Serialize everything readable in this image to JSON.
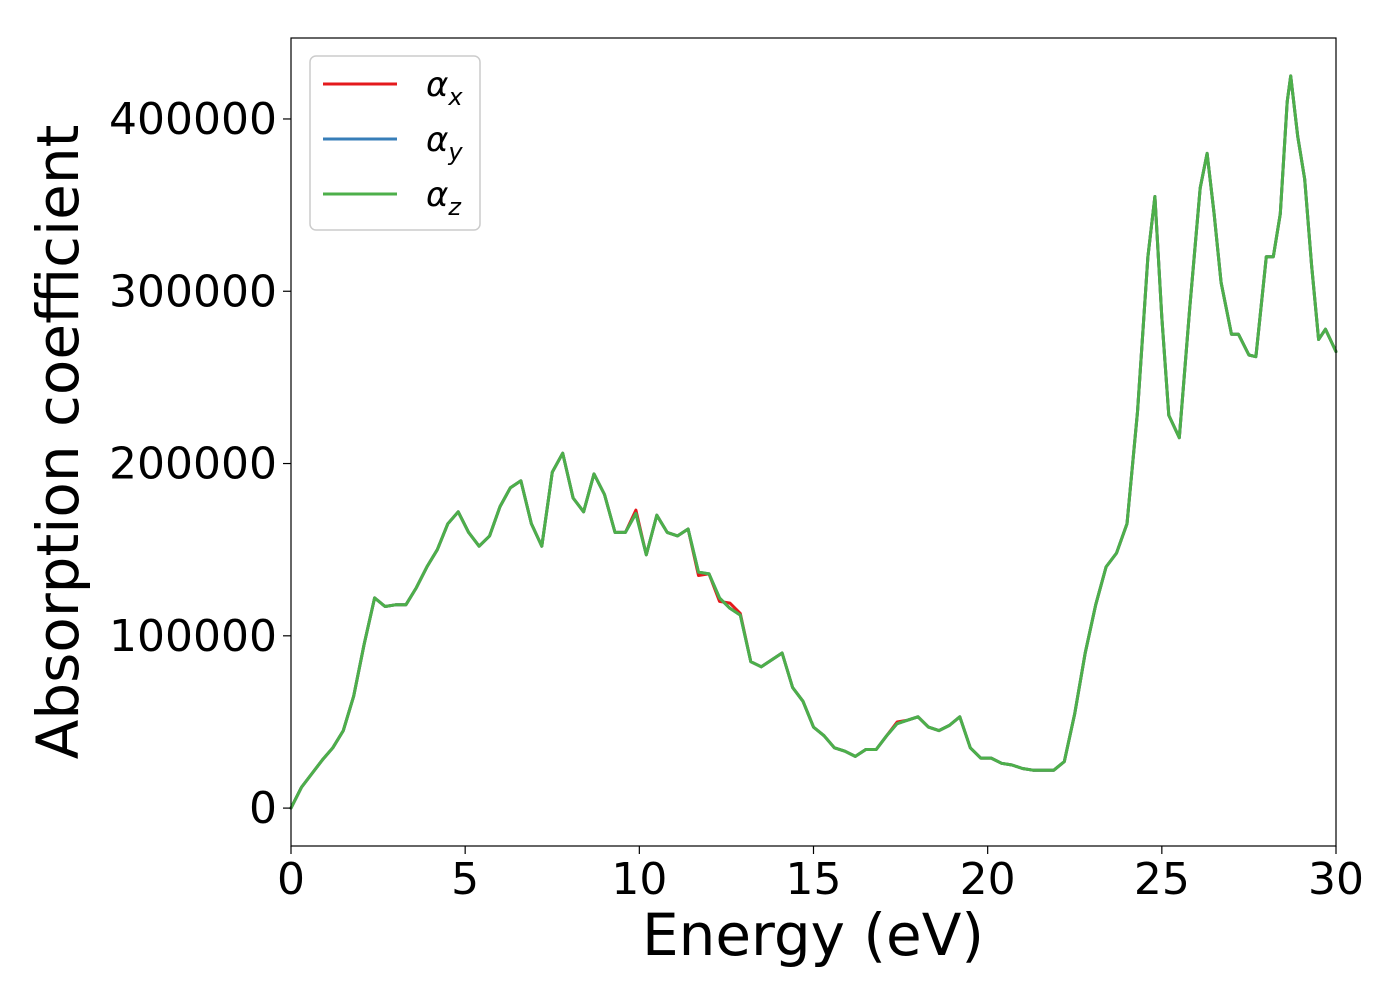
{
  "chart_data": {
    "type": "line",
    "title": "",
    "xlabel": "Energy (eV)",
    "ylabel": "Absorption coefficient",
    "xlim": [
      0,
      30
    ],
    "ylim": [
      -22000,
      447000
    ],
    "xticks": [
      0,
      5,
      10,
      15,
      20,
      25,
      30
    ],
    "xtick_labels": [
      "0",
      "5",
      "10",
      "15",
      "20",
      "25",
      "30"
    ],
    "yticks": [
      0,
      100000,
      200000,
      300000,
      400000
    ],
    "ytick_labels": [
      "0",
      "100000",
      "200000",
      "300000",
      "400000"
    ],
    "grid": false,
    "legend_position": "top-left",
    "x": [
      0,
      0.3,
      0.6,
      0.9,
      1.2,
      1.5,
      1.8,
      2.1,
      2.4,
      2.7,
      3.0,
      3.3,
      3.6,
      3.9,
      4.2,
      4.5,
      4.8,
      5.1,
      5.4,
      5.7,
      6.0,
      6.3,
      6.6,
      6.9,
      7.2,
      7.5,
      7.8,
      8.1,
      8.4,
      8.7,
      9.0,
      9.3,
      9.6,
      9.9,
      10.2,
      10.5,
      10.8,
      11.1,
      11.4,
      11.7,
      12.0,
      12.3,
      12.6,
      12.9,
      13.2,
      13.5,
      13.8,
      14.1,
      14.4,
      14.7,
      15.0,
      15.3,
      15.6,
      15.9,
      16.2,
      16.5,
      16.8,
      17.1,
      17.4,
      17.7,
      18.0,
      18.3,
      18.6,
      18.9,
      19.2,
      19.5,
      19.8,
      20.1,
      20.4,
      20.7,
      21.0,
      21.3,
      21.6,
      21.9,
      22.2,
      22.5,
      22.8,
      23.1,
      23.4,
      23.7,
      24.0,
      24.3,
      24.6,
      24.8,
      25.0,
      25.2,
      25.5,
      25.8,
      26.1,
      26.3,
      26.5,
      26.7,
      27.0,
      27.2,
      27.5,
      27.7,
      28.0,
      28.2,
      28.4,
      28.6,
      28.7,
      28.9,
      29.1,
      29.3,
      29.5,
      29.7,
      30.0
    ],
    "series": [
      {
        "name": "αx",
        "color": "#e41a1c",
        "values": [
          0,
          12000,
          20000,
          28000,
          35000,
          45000,
          65000,
          95000,
          122000,
          117000,
          118000,
          118000,
          128000,
          140000,
          150000,
          165000,
          172000,
          160000,
          152000,
          158000,
          175000,
          186000,
          190000,
          165000,
          152000,
          195000,
          206000,
          180000,
          172000,
          194000,
          182000,
          160000,
          160000,
          173000,
          147000,
          170000,
          160000,
          158000,
          162000,
          135000,
          136000,
          120000,
          119000,
          113000,
          85000,
          82000,
          86000,
          90000,
          70000,
          62000,
          47000,
          42000,
          35000,
          33000,
          30000,
          34000,
          34000,
          42000,
          50000,
          51000,
          53000,
          47000,
          45000,
          48000,
          53000,
          35000,
          29000,
          29000,
          26000,
          25000,
          23000,
          22000,
          22000,
          22000,
          27000,
          55000,
          90000,
          118000,
          140000,
          148000,
          165000,
          230000,
          320000,
          355000,
          285000,
          228000,
          215000,
          290000,
          360000,
          380000,
          345000,
          305000,
          275000,
          275000,
          263000,
          262000,
          320000,
          320000,
          345000,
          410000,
          425000,
          390000,
          365000,
          315000,
          272000,
          278000,
          265000
        ]
      },
      {
        "name": "αy",
        "color": "#377eb8",
        "values": [
          0,
          12000,
          20000,
          28000,
          35000,
          45000,
          65000,
          95000,
          122000,
          117000,
          118000,
          118000,
          128000,
          140000,
          150000,
          165000,
          172000,
          160000,
          152000,
          158000,
          175000,
          186000,
          190000,
          165000,
          152000,
          195000,
          206000,
          180000,
          172000,
          194000,
          182000,
          160000,
          160000,
          171000,
          147000,
          170000,
          160000,
          158000,
          162000,
          137000,
          136000,
          122000,
          116000,
          112000,
          85000,
          82000,
          86000,
          90000,
          70000,
          62000,
          47000,
          42000,
          35000,
          33000,
          30000,
          34000,
          34000,
          42000,
          49000,
          51000,
          53000,
          47000,
          45000,
          48000,
          53000,
          35000,
          29000,
          29000,
          26000,
          25000,
          23000,
          22000,
          22000,
          22000,
          27000,
          55000,
          90000,
          118000,
          140000,
          148000,
          165000,
          230000,
          320000,
          355000,
          285000,
          228000,
          215000,
          290000,
          360000,
          380000,
          345000,
          305000,
          275000,
          275000,
          263000,
          262000,
          320000,
          320000,
          345000,
          410000,
          425000,
          390000,
          365000,
          315000,
          272000,
          278000,
          265000
        ]
      },
      {
        "name": "αz",
        "color": "#4daf4a",
        "values": [
          0,
          12000,
          20000,
          28000,
          35000,
          45000,
          65000,
          95000,
          122000,
          117000,
          118000,
          118000,
          128000,
          140000,
          150000,
          165000,
          172000,
          160000,
          152000,
          158000,
          175000,
          186000,
          190000,
          165000,
          152000,
          195000,
          206000,
          180000,
          172000,
          194000,
          182000,
          160000,
          160000,
          171000,
          147000,
          170000,
          160000,
          158000,
          162000,
          137000,
          136000,
          122000,
          116000,
          112000,
          85000,
          82000,
          86000,
          90000,
          70000,
          62000,
          47000,
          42000,
          35000,
          33000,
          30000,
          34000,
          34000,
          42000,
          49000,
          51000,
          53000,
          47000,
          45000,
          48000,
          53000,
          35000,
          29000,
          29000,
          26000,
          25000,
          23000,
          22000,
          22000,
          22000,
          27000,
          55000,
          90000,
          118000,
          140000,
          148000,
          165000,
          230000,
          320000,
          355000,
          285000,
          228000,
          215000,
          290000,
          360000,
          380000,
          345000,
          305000,
          275000,
          275000,
          263000,
          262000,
          320000,
          320000,
          345000,
          410000,
          425000,
          390000,
          365000,
          315000,
          272000,
          278000,
          265000
        ]
      }
    ]
  }
}
